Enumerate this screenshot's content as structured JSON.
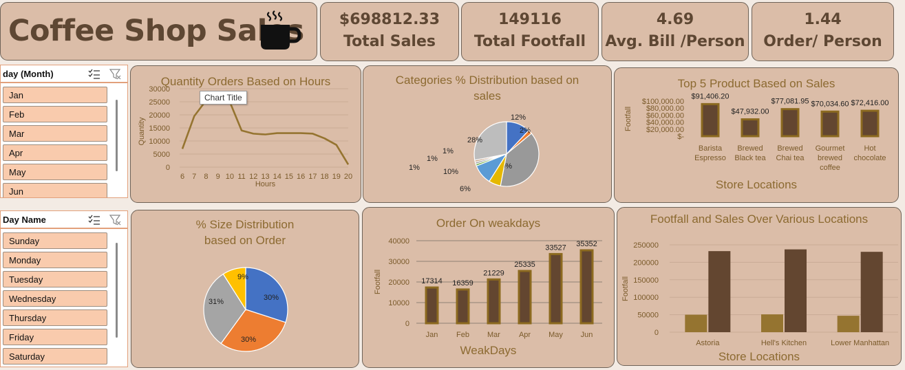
{
  "header": {
    "title": "Coffee Shop Sales",
    "icon": "coffee-cup-icon"
  },
  "kpis": [
    {
      "value": "$698812.33",
      "label": "Total Sales"
    },
    {
      "value": "149116",
      "label": "Total Footfall"
    },
    {
      "value": "4.69",
      "label": "Avg. Bill /Person"
    },
    {
      "value": "1.44",
      "label": "Order/ Person"
    }
  ],
  "slicer_month": {
    "title": "day (Month)",
    "items": [
      "Jan",
      "Feb",
      "Mar",
      "Apr",
      "May",
      "Jun"
    ]
  },
  "slicer_day": {
    "title": "Day Name",
    "items": [
      "Sunday",
      "Monday",
      "Tuesday",
      "Wednesday",
      "Thursday",
      "Friday",
      "Saturday"
    ]
  },
  "colors": {
    "bar_fill": "#634630",
    "bar_border": "#8c6a20",
    "line": "#957430",
    "bar_gold": "#957430"
  },
  "chart_data": [
    {
      "id": "hours",
      "type": "line",
      "title": "Quantity Orders Based on Hours",
      "tooltip": "Chart Title",
      "xlabel": "Hours",
      "ylabel": "Quantity",
      "x": [
        6,
        7,
        8,
        9,
        10,
        11,
        12,
        13,
        14,
        15,
        16,
        17,
        18,
        19,
        20
      ],
      "values": [
        7000,
        19500,
        25500,
        25500,
        25000,
        14000,
        12800,
        12500,
        13000,
        13000,
        13000,
        12800,
        11000,
        8500,
        1000
      ],
      "yticks": [
        0,
        5000,
        10000,
        15000,
        20000,
        25000,
        30000
      ],
      "ylim": [
        0,
        30000
      ]
    },
    {
      "id": "categories",
      "type": "pie",
      "title": "Categories % Distribution based on sales",
      "slices": [
        {
          "value": 12,
          "label": "12%",
          "color": "#4472c4"
        },
        {
          "value": 2,
          "label": "2%",
          "color": "#ed7d31"
        },
        {
          "value": 39,
          "label": "39%",
          "color": "#999999"
        },
        {
          "value": 6,
          "label": "6%",
          "color": "#e5b800"
        },
        {
          "value": 10,
          "label": "10%",
          "color": "#5b9bd5"
        },
        {
          "value": 1,
          "label": "1%",
          "color": "#70ad47"
        },
        {
          "value": 1,
          "label": "1%",
          "color": "#a5a5a5"
        },
        {
          "value": 1,
          "label": "1%",
          "color": "#c9a68a"
        },
        {
          "value": 28,
          "label": "28%",
          "color": "#bdbdbd"
        }
      ]
    },
    {
      "id": "top5",
      "type": "bar",
      "title": "Top 5 Product Based on Sales",
      "xlabel": "Store Locations",
      "ylabel": "Footfall",
      "categories": [
        "Barista Espresso",
        "Brewed Black tea",
        "Brewed Chai tea",
        "Gourmet brewed coffee",
        "Hot chocolate"
      ],
      "category_lines": [
        [
          "Barista",
          "Espresso"
        ],
        [
          "Brewed",
          "Black tea"
        ],
        [
          "Brewed",
          "Chai tea"
        ],
        [
          "Gourmet",
          "brewed",
          "coffee"
        ],
        [
          "Hot",
          "chocolate"
        ]
      ],
      "values": [
        91406.2,
        47932.0,
        77081.95,
        70034.6,
        72416.0
      ],
      "value_labels": [
        "$91,406.20",
        "$47,932.00",
        "$77,081.95",
        "$70,034.60",
        "$72,416.00"
      ],
      "ytick_labels": [
        "$100,000.00",
        "$80,000.00",
        "$60,000.00",
        "$40,000.00",
        "$20,000.00",
        "$-"
      ],
      "ylim": [
        0,
        100000
      ]
    },
    {
      "id": "size",
      "type": "pie",
      "title": "% Size Distribution based on Order",
      "slices": [
        {
          "value": 30,
          "label": "30%",
          "color": "#4472c4"
        },
        {
          "value": 30,
          "label": "30%",
          "color": "#ed7d31"
        },
        {
          "value": 31,
          "label": "31%",
          "color": "#a5a5a5"
        },
        {
          "value": 9,
          "label": "9%",
          "color": "#ffc000"
        }
      ]
    },
    {
      "id": "weekdays",
      "type": "bar",
      "title": "Order On weakdays",
      "xlabel": "WeakDays",
      "ylabel": "Footfall",
      "categories": [
        "Jan",
        "Feb",
        "Mar",
        "Apr",
        "May",
        "Jun"
      ],
      "values": [
        17314,
        16359,
        21229,
        25335,
        33527,
        35352
      ],
      "yticks": [
        0,
        10000,
        20000,
        30000,
        40000
      ],
      "ylim": [
        0,
        40000
      ]
    },
    {
      "id": "locations",
      "type": "bar",
      "title": "Footfall  and Sales Over Various Locations",
      "xlabel": "Store Locations",
      "ylabel": "Footfall",
      "categories": [
        "Astoria",
        "Hell's Kitchen",
        "Lower Manhattan"
      ],
      "series": [
        {
          "values": [
            50000,
            51000,
            47000
          ]
        },
        {
          "values": [
            232000,
            237000,
            230000
          ]
        }
      ],
      "yticks": [
        0,
        50000,
        100000,
        150000,
        200000,
        250000
      ],
      "ylim": [
        0,
        250000
      ]
    }
  ]
}
